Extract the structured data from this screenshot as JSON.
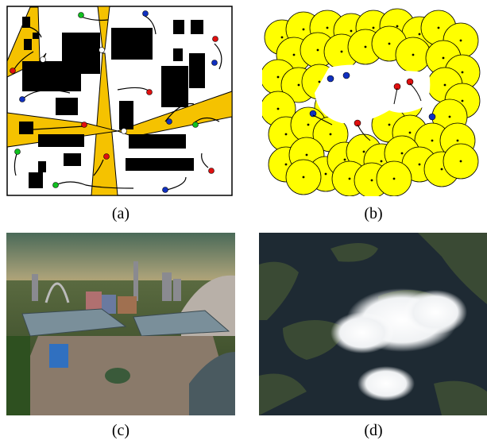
{
  "captions": {
    "a": "(a)",
    "b": "(b)",
    "c": "(c)",
    "d": "(d)"
  },
  "colors": {
    "road": "#f5c200",
    "building": "#000000",
    "agent_red": "#e01010",
    "agent_blue": "#1030c0",
    "agent_green": "#10c020",
    "crowd_disc": "#ffff00",
    "sky_top": "#4a6a58",
    "sky_horizon": "#e8b860",
    "water": "#1e2a33",
    "cloud": "#ffffff"
  },
  "icons": [
    "city-map-figure",
    "crowd-figure",
    "virtual-world-figure",
    "satellite-figure"
  ]
}
